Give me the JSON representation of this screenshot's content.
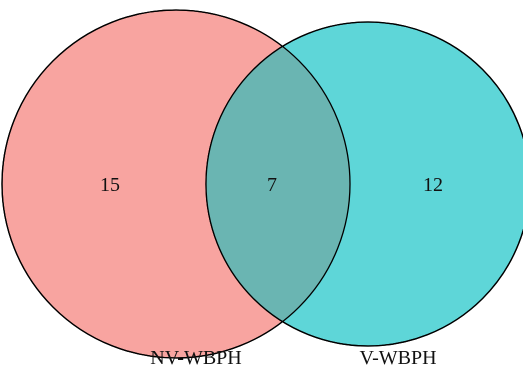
{
  "venn": {
    "sets": [
      {
        "label": "NV-WBPH",
        "only_count": "15",
        "color": "#F8A4A0"
      },
      {
        "label": "V-WBPH",
        "only_count": "12",
        "color": "#5ED6D8"
      }
    ],
    "intersection_count": "7",
    "intersection_color": "#6AB5B2",
    "outline_color": "#000000"
  }
}
